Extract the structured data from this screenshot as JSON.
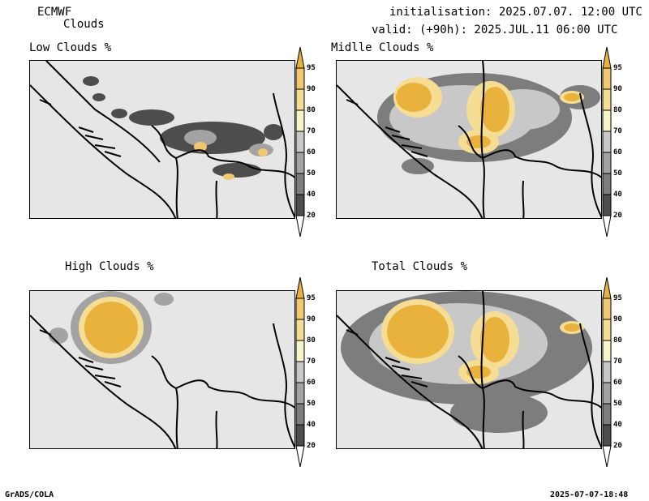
{
  "header": {
    "model": "ECMWF",
    "product": "Clouds",
    "init_line": "initialisation: 2025.07.07. 12:00 UTC",
    "valid_line": "valid: (+90h): 2025.JUL.11 06:00 UTC"
  },
  "panels": [
    {
      "title": "Low Clouds %"
    },
    {
      "title": "Midlle Clouds %"
    },
    {
      "title": "High Clouds %"
    },
    {
      "title": "Total Clouds %"
    }
  ],
  "colorbar": {
    "levels": [
      "20",
      "40",
      "50",
      "60",
      "70",
      "80",
      "90",
      "95"
    ],
    "colors": [
      "#ffffff",
      "#4d4d4d",
      "#7d7d7d",
      "#a3a3a3",
      "#c8c8c8",
      "#f7f4c8",
      "#f6dd94",
      "#f0c871",
      "#e8b23c"
    ]
  },
  "footer": {
    "left": "GrADS/COLA",
    "right": "2025-07-07-18:48"
  }
}
